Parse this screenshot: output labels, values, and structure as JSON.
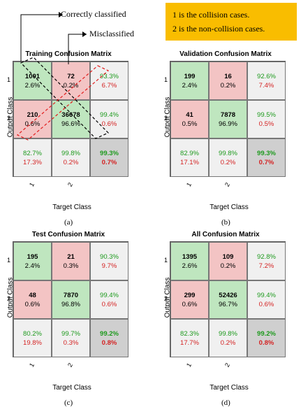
{
  "annotations": {
    "correct": "Correctly classified",
    "mis": "Misclassified"
  },
  "legend": {
    "line1": "1 is the collision cases.",
    "line2": "2 is the non-collision cases."
  },
  "panels": [
    {
      "title": "Training Confusion Matrix",
      "caption": "(a)",
      "ylabel": "Output Class",
      "xlabel": "Target Class",
      "yticks": [
        "1",
        "2"
      ],
      "xticks": [
        "1",
        "2"
      ],
      "cells": [
        {
          "count": "1001",
          "pct": "2.6%"
        },
        {
          "count": "72",
          "pct": "0.2%"
        },
        {
          "g": "93.3%",
          "r": "6.7%"
        },
        {
          "count": "210",
          "pct": "0.6%"
        },
        {
          "count": "36678",
          "pct": "96.6%"
        },
        {
          "g": "99.4%",
          "r": "0.6%"
        },
        {
          "g": "82.7%",
          "r": "17.3%"
        },
        {
          "g": "99.8%",
          "r": "0.2%"
        },
        {
          "g": "99.3%",
          "r": "0.7%"
        }
      ]
    },
    {
      "title": "Validation Confusion Matrix",
      "caption": "(b)",
      "ylabel": "Output Class",
      "xlabel": "Target Class",
      "yticks": [
        "1",
        "2"
      ],
      "xticks": [
        "1",
        "2"
      ],
      "cells": [
        {
          "count": "199",
          "pct": "2.4%"
        },
        {
          "count": "16",
          "pct": "0.2%"
        },
        {
          "g": "92.6%",
          "r": "7.4%"
        },
        {
          "count": "41",
          "pct": "0.5%"
        },
        {
          "count": "7878",
          "pct": "96.9%"
        },
        {
          "g": "99.5%",
          "r": "0.5%"
        },
        {
          "g": "82.9%",
          "r": "17.1%"
        },
        {
          "g": "99.8%",
          "r": "0.2%"
        },
        {
          "g": "99.3%",
          "r": "0.7%"
        }
      ]
    },
    {
      "title": "Test Confusion Matrix",
      "caption": "(c)",
      "ylabel": "Output Class",
      "xlabel": "Target Class",
      "yticks": [
        "1",
        "2"
      ],
      "xticks": [
        "1",
        "2"
      ],
      "cells": [
        {
          "count": "195",
          "pct": "2.4%"
        },
        {
          "count": "21",
          "pct": "0.3%"
        },
        {
          "g": "90.3%",
          "r": "9.7%"
        },
        {
          "count": "48",
          "pct": "0.6%"
        },
        {
          "count": "7870",
          "pct": "96.8%"
        },
        {
          "g": "99.4%",
          "r": "0.6%"
        },
        {
          "g": "80.2%",
          "r": "19.8%"
        },
        {
          "g": "99.7%",
          "r": "0.3%"
        },
        {
          "g": "99.2%",
          "r": "0.8%"
        }
      ]
    },
    {
      "title": "All Confusion Matrix",
      "caption": "(d)",
      "ylabel": "Output Class",
      "xlabel": "Target Class",
      "yticks": [
        "1",
        "2"
      ],
      "xticks": [
        "1",
        "2"
      ],
      "cells": [
        {
          "count": "1395",
          "pct": "2.6%"
        },
        {
          "count": "109",
          "pct": "0.2%"
        },
        {
          "g": "92.8%",
          "r": "7.2%"
        },
        {
          "count": "299",
          "pct": "0.6%"
        },
        {
          "count": "52426",
          "pct": "96.7%"
        },
        {
          "g": "99.4%",
          "r": "0.6%"
        },
        {
          "g": "82.3%",
          "r": "17.7%"
        },
        {
          "g": "99.8%",
          "r": "0.2%"
        },
        {
          "g": "99.2%",
          "r": "0.8%"
        }
      ]
    }
  ],
  "colors": {
    "correct_bg": "#bfe6bf",
    "wrong_bg": "#f3c4c4",
    "summary_bg": "#f0f0f0",
    "total_bg": "#cfcfcf",
    "legend_bg": "#f9bd00",
    "green_text": "#1e9a1e",
    "red_text": "#d42323"
  }
}
